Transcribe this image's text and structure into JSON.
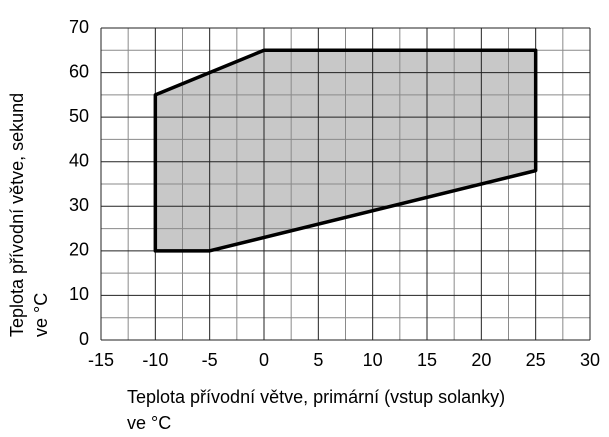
{
  "chart_data": {
    "type": "area",
    "x": [
      -10,
      -10,
      0,
      25,
      25,
      -5
    ],
    "values": [
      20,
      55,
      65,
      65,
      38,
      20
    ],
    "color": "#c8c8c8",
    "edge_color": "#000000",
    "xlabel": [
      "Teplota přívodní větve, primární (vstup solanky)",
      "ve °C"
    ],
    "ylabel": [
      "Teplota přívodní větve, sekund",
      "ve °C"
    ],
    "xlim": [
      -15,
      30
    ],
    "xticks": [
      -15,
      -10,
      -5,
      0,
      5,
      10,
      15,
      20,
      25,
      30
    ],
    "xminorticks": [
      -12.5,
      -7.5,
      -2.5,
      2.5,
      7.5,
      12.5,
      17.5,
      22.5,
      27.5
    ],
    "ylim": [
      0,
      70
    ],
    "yticks": [
      0,
      10,
      20,
      30,
      40,
      50,
      60,
      70
    ],
    "yminorticks": [
      5,
      15,
      25,
      35,
      45,
      55,
      65
    ],
    "grid": true
  }
}
